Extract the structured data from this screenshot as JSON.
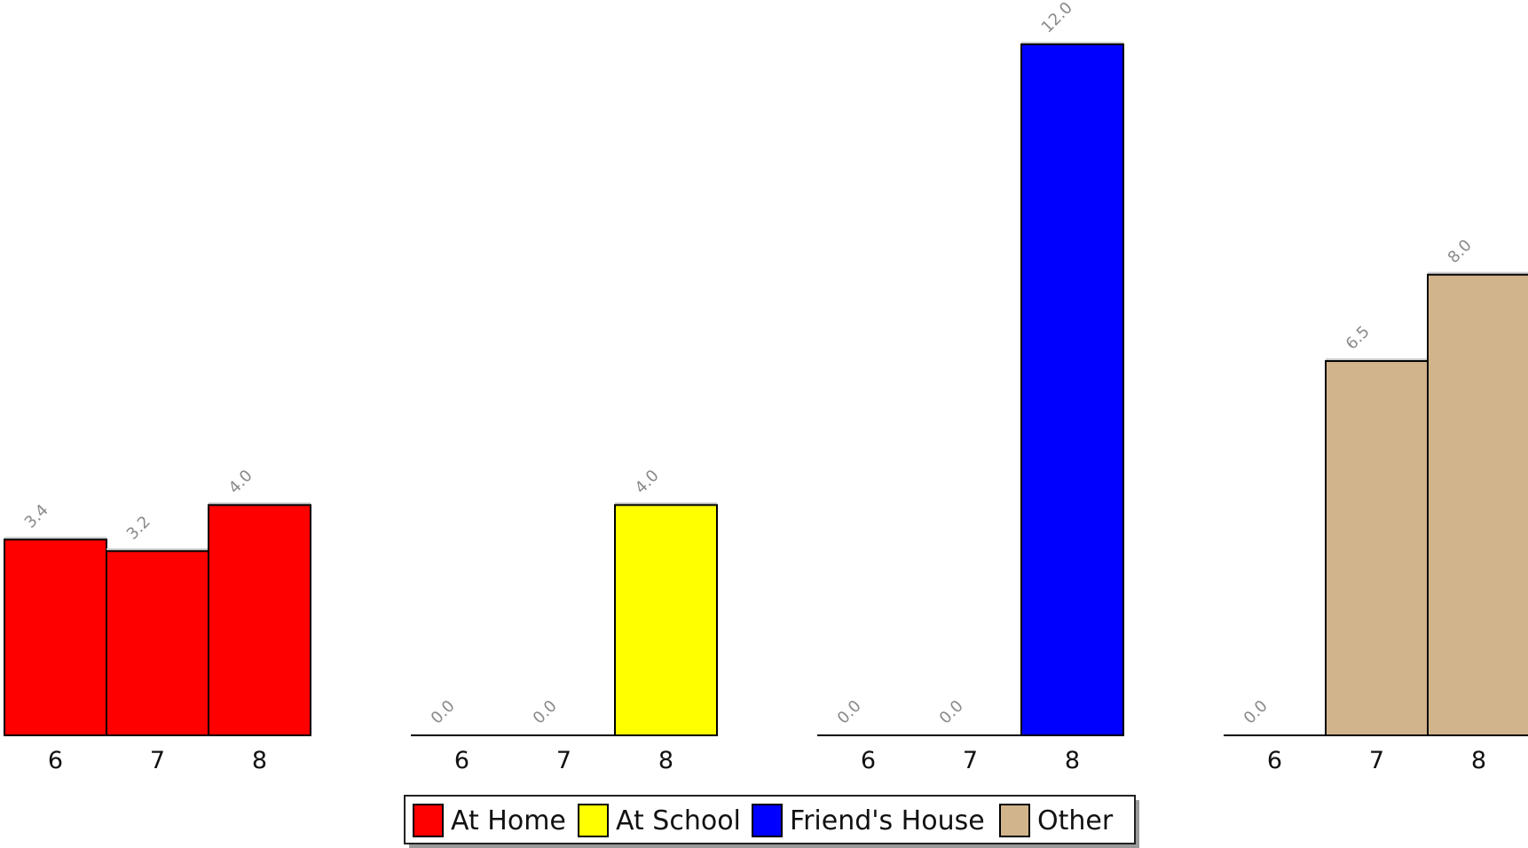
{
  "chart_data": {
    "type": "bar",
    "categories": [
      "6",
      "7",
      "8"
    ],
    "ylim": [
      0,
      12
    ],
    "grid": false,
    "legend_position": "bottom-center",
    "value_label_format": "0.0",
    "series": [
      {
        "name": "At Home",
        "color": "#ff0000",
        "values": [
          3.4,
          3.2,
          4.0
        ]
      },
      {
        "name": "At School",
        "color": "#ffff00",
        "values": [
          0.0,
          0.0,
          4.0
        ]
      },
      {
        "name": "Friend's House",
        "color": "#0000ff",
        "values": [
          0.0,
          0.0,
          12.0
        ]
      },
      {
        "name": "Other",
        "color": "#d2b48c",
        "values": [
          0.0,
          6.5,
          8.0
        ]
      }
    ]
  }
}
